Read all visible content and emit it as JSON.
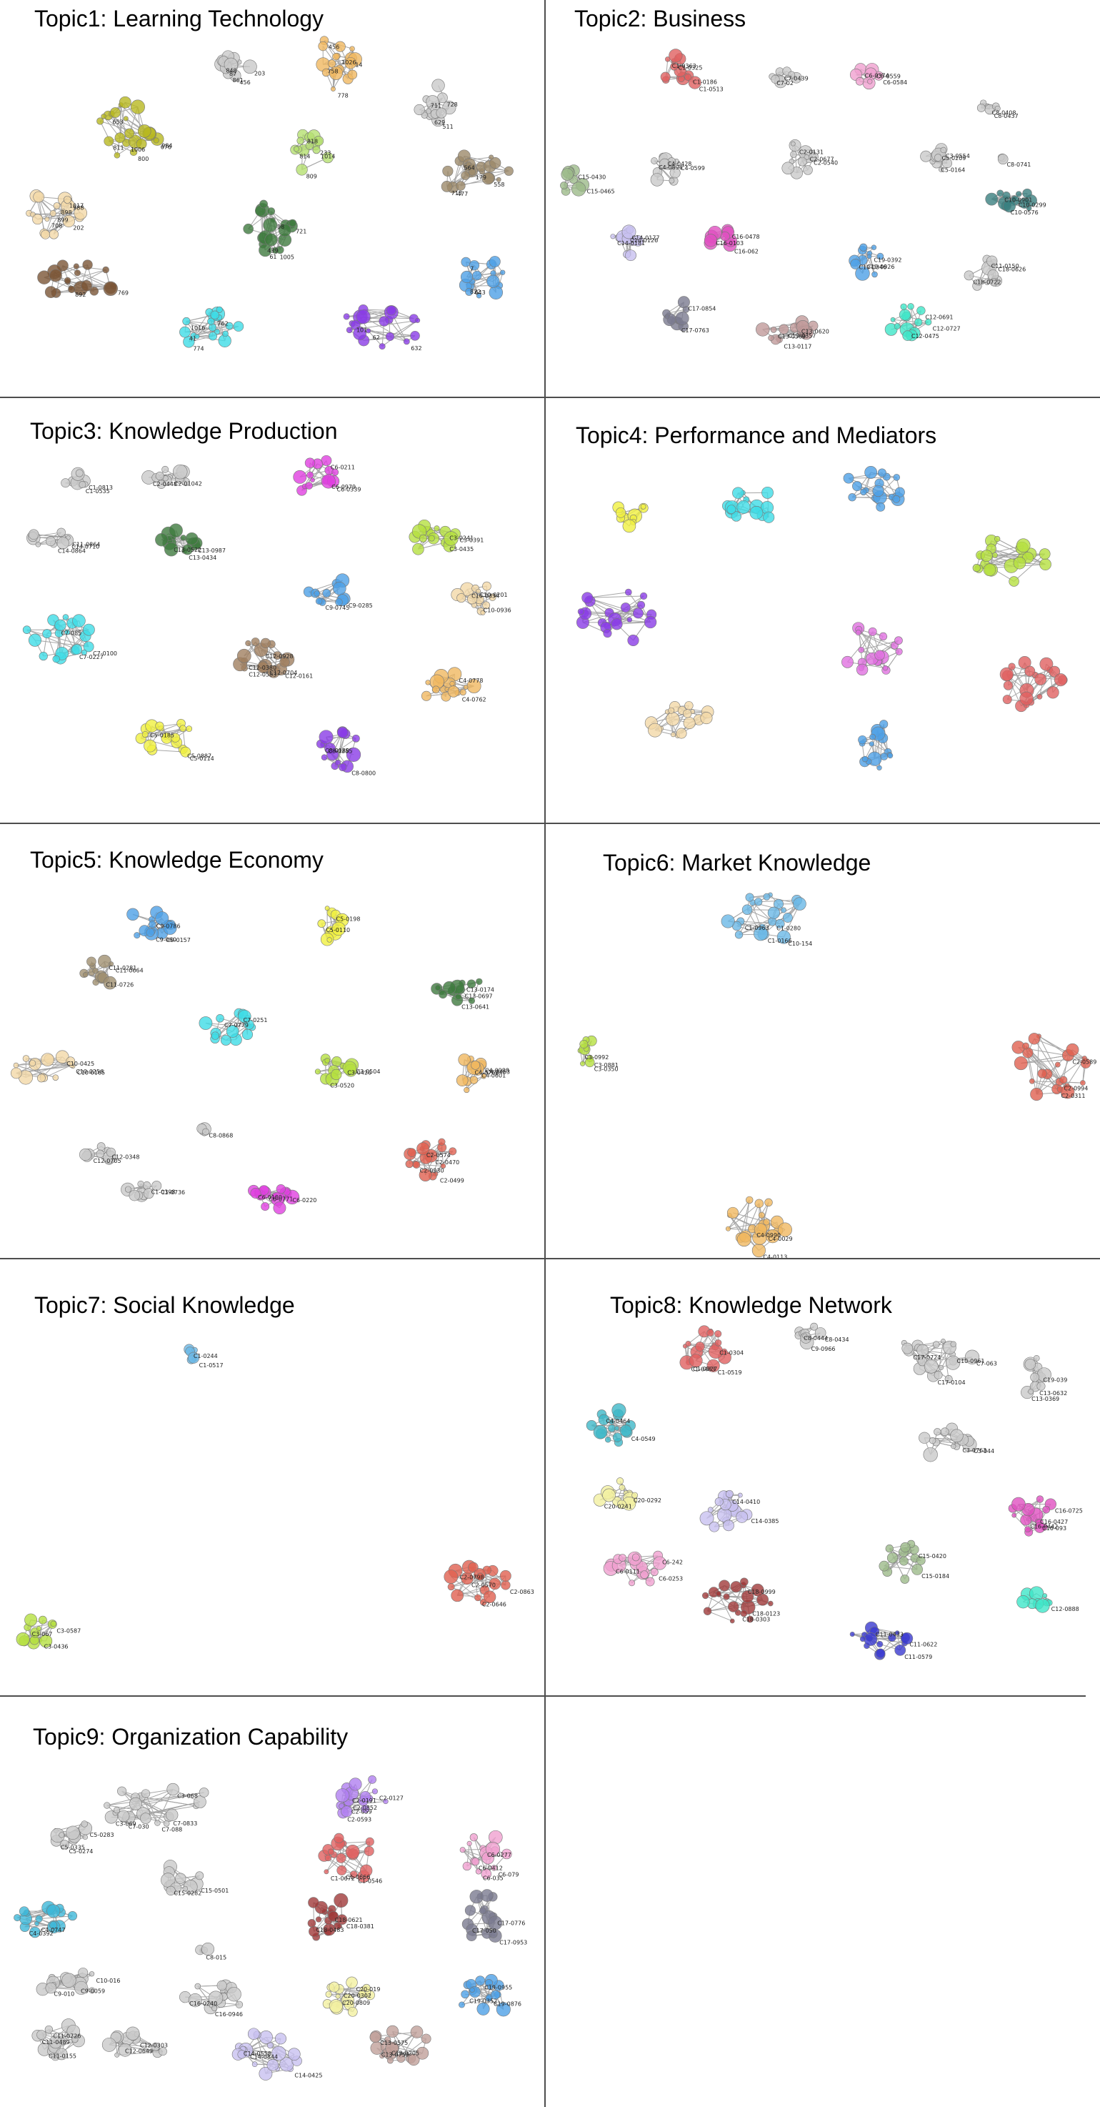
{
  "panels": [
    {
      "id": "t1",
      "title": "Topic1: Learning Technology",
      "clusters": [
        {
          "color": "#b8b820",
          "labels": [
            "1006",
            "984",
            "676",
            "800",
            "811",
            "653"
          ]
        },
        {
          "color": "#c9c9c9",
          "labels": [
            "456",
            "87",
            "203",
            "861",
            "848"
          ]
        },
        {
          "color": "#f0b860",
          "labels": [
            "778",
            "1026",
            "14",
            "758",
            "456"
          ]
        },
        {
          "color": "#c9c9c9",
          "labels": [
            "629",
            "511",
            "728",
            "711"
          ]
        },
        {
          "color": "#b5e070",
          "labels": [
            "809",
            "814",
            "233",
            "818",
            "1014"
          ]
        },
        {
          "color": "#f3d8a8",
          "labels": [
            "708",
            "899",
            "898",
            "1017",
            "202",
            "988"
          ]
        },
        {
          "color": "#3e7a3e",
          "labels": [
            "439",
            "61",
            "98",
            "721",
            "1005"
          ]
        },
        {
          "color": "#9c8a6a",
          "labels": [
            "477",
            "564",
            "179",
            "558",
            "713"
          ]
        },
        {
          "color": "#7a5536",
          "labels": [
            "892",
            "769"
          ]
        },
        {
          "color": "#4da0e6",
          "labels": [
            "643",
            "822",
            "7"
          ]
        },
        {
          "color": "#3fdce6",
          "labels": [
            "774",
            "762",
            "1016",
            "41"
          ]
        },
        {
          "color": "#8a3ce6",
          "labels": [
            "62",
            "632",
            "101"
          ]
        }
      ]
    },
    {
      "id": "t2",
      "title": "Topic2: Business",
      "clusters": [
        {
          "color": "#e06060",
          "labels": [
            "C1-0363",
            "C1-0186",
            "C1-0513",
            "C1-0325"
          ]
        },
        {
          "color": "#c9c9c9",
          "labels": [
            "C7-0439",
            "C7-02"
          ]
        },
        {
          "color": "#f0a0d0",
          "labels": [
            "C6-0374",
            "C6-0559",
            "C6-0584"
          ]
        },
        {
          "color": "#c9c9c9",
          "labels": [
            "C8-0408",
            "C8-0437"
          ]
        },
        {
          "color": "#c9c9c9",
          "labels": [
            "C4-0428",
            "C4-0896",
            "C4-0599"
          ]
        },
        {
          "color": "#c9c9c9",
          "labels": [
            "C2-0131",
            "C2-0540",
            "C2-0677"
          ]
        },
        {
          "color": "#c9c9c9",
          "labels": [
            "C5-0209",
            "C5-0164",
            "C3-0554"
          ]
        },
        {
          "color": "#c9c9c9",
          "labels": [
            "C8-0741"
          ]
        },
        {
          "color": "#9cba8a",
          "labels": [
            "C15-0430",
            "C15-0465"
          ]
        },
        {
          "color": "#3a8080",
          "labels": [
            "C10-0299",
            "C10-0576",
            "C10-0901"
          ]
        },
        {
          "color": "#c8c0f0",
          "labels": [
            "C14-0126",
            "C14-0177",
            "C14-0181"
          ]
        },
        {
          "color": "#e050c0",
          "labels": [
            "C16-0478",
            "C16-062",
            "C16-0103"
          ]
        },
        {
          "color": "#4da0e6",
          "labels": [
            "C19-0392",
            "C19-0926",
            "C19-0346"
          ]
        },
        {
          "color": "#c9c9c9",
          "labels": [
            "C11-0150",
            "C18-0626",
            "C18-0722"
          ]
        },
        {
          "color": "#7a7a90",
          "labels": [
            "C17-0854",
            "C17-0763"
          ]
        },
        {
          "color": "#c09a9a",
          "labels": [
            "C13-0620",
            "C13-0357",
            "C13-0117",
            "C13-0569"
          ]
        },
        {
          "color": "#3fe6c8",
          "labels": [
            "C12-0691",
            "C12-0727",
            "C12-0475"
          ]
        }
      ]
    },
    {
      "id": "t3",
      "title": "Topic3: Knowledge Production",
      "clusters": [
        {
          "color": "#c9c9c9",
          "labels": [
            "C1-0813",
            "C1-0535"
          ]
        },
        {
          "color": "#c9c9c9",
          "labels": [
            "C2-01042",
            "C2-0448"
          ]
        },
        {
          "color": "#e040e0",
          "labels": [
            "C6-0979",
            "C6-0211",
            "C6-0339"
          ]
        },
        {
          "color": "#c9c9c9",
          "labels": [
            "C14-0710",
            "C14-0864",
            "C11-0864"
          ]
        },
        {
          "color": "#3e7a3e",
          "labels": [
            "C13-0434",
            "C13-0522",
            "C13-0987"
          ]
        },
        {
          "color": "#b5e040",
          "labels": [
            "C3-0435",
            "C3-0391",
            "C3-0241"
          ]
        },
        {
          "color": "#4da0e6",
          "labels": [
            "C9-0285",
            "C9-0745"
          ]
        },
        {
          "color": "#f3d8a8",
          "labels": [
            "C10-0936",
            "C10-0334",
            "C10-0201"
          ]
        },
        {
          "color": "#3fdce6",
          "labels": [
            "C7-0227",
            "C7-0100",
            "C7-085"
          ]
        },
        {
          "color": "#a08060",
          "labels": [
            "C12-0161",
            "C12-0380",
            "C12-0928",
            "C12-0704",
            "C12-0583"
          ]
        },
        {
          "color": "#f0b860",
          "labels": [
            "C4-0762",
            "C4-0778"
          ]
        },
        {
          "color": "#f0f040",
          "labels": [
            "C5-0887",
            "C5-0114",
            "C5-0185"
          ]
        },
        {
          "color": "#8a3ce6",
          "labels": [
            "C8-0800",
            "C8-0255",
            "C8-0188"
          ]
        }
      ]
    },
    {
      "id": "t4",
      "title": "Topic4: Performance and Mediators",
      "clusters": [
        {
          "color": "#f0f040",
          "labels": []
        },
        {
          "color": "#3fdce6",
          "labels": []
        },
        {
          "color": "#4da0e6",
          "labels": []
        },
        {
          "color": "#b5e040",
          "labels": []
        },
        {
          "color": "#8a3ce6",
          "labels": []
        },
        {
          "color": "#e070e0",
          "labels": []
        },
        {
          "color": "#e06060",
          "labels": []
        },
        {
          "color": "#f3d8a8",
          "labels": []
        },
        {
          "color": "#4da0e6",
          "labels": []
        }
      ]
    },
    {
      "id": "t5",
      "title": "Topic5: Knowledge Economy",
      "clusters": [
        {
          "color": "#4da0e6",
          "labels": [
            "C9-0786",
            "C9-0157",
            "C9-060"
          ]
        },
        {
          "color": "#f0f040",
          "labels": [
            "C5-0198",
            "C5-0110"
          ]
        },
        {
          "color": "#a09070",
          "labels": [
            "C11-0281",
            "C11-0664",
            "C11-0726"
          ]
        },
        {
          "color": "#3e7a3e",
          "labels": [
            "C13-0174",
            "C13-0641",
            "C13-0697"
          ]
        },
        {
          "color": "#3fdce6",
          "labels": [
            "C7-0251",
            "C7-0779"
          ]
        },
        {
          "color": "#f3d8a8",
          "labels": [
            "C10-0425",
            "C10-0165",
            "C10-0256"
          ]
        },
        {
          "color": "#b5e040",
          "labels": [
            "C3-0426",
            "C3-0520",
            "C3-0504"
          ]
        },
        {
          "color": "#f0b860",
          "labels": [
            "C4-0463",
            "C4-0768",
            "C4-0988",
            "C4-0601"
          ]
        },
        {
          "color": "#c9c9c9",
          "labels": [
            "C8-0868"
          ]
        },
        {
          "color": "#c9c9c9",
          "labels": [
            "C12-0348",
            "C12-0705"
          ]
        },
        {
          "color": "#c9c9c9",
          "labels": [
            "C1-0736",
            "C1-0398"
          ]
        },
        {
          "color": "#e06050",
          "labels": [
            "C2-0470",
            "C2-0499",
            "C2-0574",
            "C2-0930"
          ]
        },
        {
          "color": "#e040e0",
          "labels": [
            "C6-0220",
            "C6-0180",
            "C6-0771"
          ]
        }
      ]
    },
    {
      "id": "t6",
      "title": "Topic6: Market Knowledge",
      "clusters": [
        {
          "color": "#6ab8e6",
          "labels": [
            "C10-154",
            "C1-0280",
            "C1-0166",
            "C1-0963"
          ]
        },
        {
          "color": "#b5e040",
          "labels": [
            "C3-0881",
            "C3-0992",
            "C3-0350"
          ]
        },
        {
          "color": "#e06050",
          "labels": [
            "C2-0311",
            "C2-0589",
            "C2-0994"
          ]
        },
        {
          "color": "#f0b860",
          "labels": [
            "C4-0113",
            "C4-0990",
            "C4-0029"
          ]
        }
      ]
    },
    {
      "id": "t7",
      "title": "Topic7: Social Knowledge",
      "clusters": [
        {
          "color": "#6ab8e6",
          "labels": [
            "C1-0244",
            "C1-0517"
          ]
        },
        {
          "color": "#e06050",
          "labels": [
            "C2-0798",
            "C2-0570",
            "C2-0646",
            "C2-0863"
          ]
        },
        {
          "color": "#b5e040",
          "labels": [
            "C3-067",
            "C3-0587",
            "C3-0436"
          ]
        }
      ]
    },
    {
      "id": "t8",
      "title": "Topic8: Knowledge Network",
      "clusters": [
        {
          "color": "#e06060",
          "labels": [
            "C1-0304",
            "C1-0519",
            "C1-0927",
            "C1-0483"
          ]
        },
        {
          "color": "#c9c9c9",
          "labels": [
            "C8-0434",
            "C8-0444",
            "C9-0966"
          ]
        },
        {
          "color": "#c9c9c9",
          "labels": [
            "C7-063",
            "C10-0961",
            "C17-0104",
            "C17-0724"
          ]
        },
        {
          "color": "#c9c9c9",
          "labels": [
            "C19-039",
            "C13-0369",
            "C13-0632"
          ]
        },
        {
          "color": "#3fb8c8",
          "labels": [
            "C4-0549",
            "C4-0464"
          ]
        },
        {
          "color": "#c9c9c9",
          "labels": [
            "C3-044",
            "C3-0763"
          ]
        },
        {
          "color": "#f3f0a0",
          "labels": [
            "C20-0292",
            "C20-0241"
          ]
        },
        {
          "color": "#c8c0f0",
          "labels": [
            "C14-0385",
            "C14-0410"
          ]
        },
        {
          "color": "#e050c0",
          "labels": [
            "C16-0427",
            "C16-093",
            "C16-0725",
            "C16-0442"
          ]
        },
        {
          "color": "#f0a0d0",
          "labels": [
            "C6-0253",
            "C6-0111",
            "C6-242"
          ]
        },
        {
          "color": "#9cba8a",
          "labels": [
            "C15-0184",
            "C15-0420"
          ]
        },
        {
          "color": "#a03a3a",
          "labels": [
            "C18-0123",
            "C18-0303",
            "C18-0999"
          ]
        },
        {
          "color": "#3fe6c8",
          "labels": [
            "C12-0888"
          ]
        },
        {
          "color": "#3a3ad0",
          "labels": [
            "C11-0579",
            "C11-0622",
            "C11-0433"
          ]
        }
      ]
    },
    {
      "id": "t9",
      "title": "Topic9: Organization Capability",
      "clusters": [
        {
          "color": "#c9c9c9",
          "labels": [
            "C7-030",
            "C7-0833",
            "C3-069",
            "C3-068",
            "C7-088"
          ]
        },
        {
          "color": "#b080f0",
          "labels": [
            "C2-059",
            "C2-0191",
            "C2-0593",
            "C2-0127",
            "C2-0852"
          ]
        },
        {
          "color": "#c9c9c9",
          "labels": [
            "C5-0335",
            "C5-0283",
            "C5-0274"
          ]
        },
        {
          "color": "#e06060",
          "labels": [
            "C1-0672",
            "C1-0666",
            "C1-0546"
          ]
        },
        {
          "color": "#f0a0d0",
          "labels": [
            "C6-0412",
            "C6-0277",
            "C6-079",
            "C6-035"
          ]
        },
        {
          "color": "#c9c9c9",
          "labels": [
            "C15-0282",
            "C15-0501"
          ]
        },
        {
          "color": "#3fb8d8",
          "labels": [
            "C4-0747",
            "C4-0392"
          ]
        },
        {
          "color": "#a03a3a",
          "labels": [
            "C18-0483",
            "C18-0621",
            "C18-0381"
          ]
        },
        {
          "color": "#7a7a90",
          "labels": [
            "C17-050",
            "C17-0953",
            "C17-0776"
          ]
        },
        {
          "color": "#c9c9c9",
          "labels": [
            "C8-015"
          ]
        },
        {
          "color": "#c9c9c9",
          "labels": [
            "C9-010",
            "C9-0059",
            "C10-016"
          ]
        },
        {
          "color": "#c9c9c9",
          "labels": [
            "C16-0240",
            "C16-0946"
          ]
        },
        {
          "color": "#f3f0a0",
          "labels": [
            "C20-0809",
            "C20-0302",
            "C20-019"
          ]
        },
        {
          "color": "#4da0e6",
          "labels": [
            "C19-0352",
            "C19-0876",
            "C19-0955"
          ]
        },
        {
          "color": "#c9c9c9",
          "labels": [
            "C11-0489",
            "C11-0155",
            "C11-0726"
          ]
        },
        {
          "color": "#c9c9c9",
          "labels": [
            "C12-0649",
            "C12-0303"
          ]
        },
        {
          "color": "#c8c0f0",
          "labels": [
            "C14-0558",
            "C14-0425",
            "C14-0844"
          ]
        },
        {
          "color": "#c0a09a",
          "labels": [
            "C13-0575",
            "C13-0759",
            "C13-0205"
          ]
        }
      ]
    }
  ]
}
